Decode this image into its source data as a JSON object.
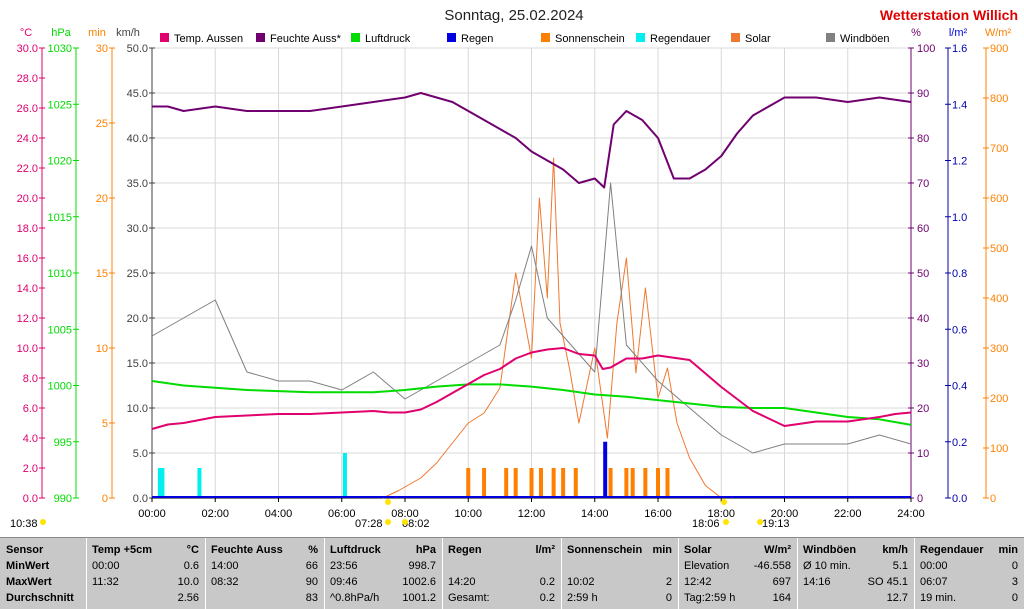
{
  "title": "Sonntag, 25.02.2024",
  "brand": "Wetterstation Willich",
  "units": {
    "left": [
      "°C",
      "hPa",
      "min",
      "km/h"
    ],
    "right": [
      "%",
      "l/m²",
      "W/m²"
    ]
  },
  "colors": {
    "temp": "#e0006e",
    "humidity": "#700070",
    "pressure": "#00dc00",
    "rain": "#0000e0",
    "sunshine": "#ff8000",
    "rainduration": "#00f0f0",
    "solar": "#f07830",
    "gust": "#808080"
  },
  "legend": [
    {
      "key": "temp",
      "label": "Temp. Aussen"
    },
    {
      "key": "humidity",
      "label": "Feuchte Auss*"
    },
    {
      "key": "pressure",
      "label": "Luftdruck"
    },
    {
      "key": "rain",
      "label": "Regen"
    },
    {
      "key": "sunshine",
      "label": "Sonnenschein"
    },
    {
      "key": "rainduration",
      "label": "Regendauer"
    },
    {
      "key": "solar",
      "label": "Solar"
    },
    {
      "key": "gust",
      "label": "Windböen"
    }
  ],
  "axes": {
    "temp": {
      "ticks": [
        "30.0",
        "28.0",
        "26.0",
        "24.0",
        "22.0",
        "20.0",
        "18.0",
        "16.0",
        "14.0",
        "12.0",
        "10.0",
        "8.0",
        "6.0",
        "4.0",
        "2.0",
        "0.0"
      ],
      "range": [
        0,
        30
      ]
    },
    "pressure": {
      "ticks": [
        "1030",
        "1025",
        "1020",
        "1015",
        "1010",
        "1005",
        "1000",
        "995",
        "990"
      ],
      "range": [
        990,
        1030
      ]
    },
    "minutes": {
      "ticks": [
        "30",
        "25",
        "20",
        "15",
        "10",
        "5",
        "0"
      ],
      "range": [
        0,
        30
      ]
    },
    "wind": {
      "ticks": [
        "50.0",
        "45.0",
        "40.0",
        "35.0",
        "30.0",
        "25.0",
        "20.0",
        "15.0",
        "10.0",
        "5.0",
        "0.0"
      ],
      "range": [
        0,
        50
      ]
    },
    "humidity": {
      "ticks": [
        "100",
        "90",
        "80",
        "70",
        "60",
        "50",
        "40",
        "30",
        "20",
        "10",
        "0"
      ],
      "range": [
        0,
        100
      ]
    },
    "rain": {
      "ticks": [
        "1.6",
        "1.4",
        "1.2",
        "1.0",
        "0.8",
        "0.6",
        "0.4",
        "0.2",
        "0.0"
      ],
      "range": [
        0,
        1.6
      ]
    },
    "solar": {
      "ticks": [
        "900",
        "800",
        "700",
        "600",
        "500",
        "400",
        "300",
        "200",
        "100",
        "0"
      ],
      "range": [
        0,
        900
      ]
    },
    "x_ticks": [
      "00:00",
      "02:00",
      "04:00",
      "06:00",
      "08:00",
      "10:00",
      "12:00",
      "14:00",
      "16:00",
      "18:00",
      "20:00",
      "22:00",
      "24:00"
    ]
  },
  "markers": {
    "left_time": "10:38",
    "sunrise": "07:28",
    "noon_mark": "08:02",
    "sunset": "18:06",
    "dusk": "19:13"
  },
  "chart_data": {
    "type": "line",
    "x_unit": "hours",
    "grid": true,
    "series": [
      {
        "name": "Temp. Aussen",
        "key": "temp",
        "axis": "temp",
        "x": [
          0,
          0.5,
          1,
          1.5,
          2,
          3,
          4,
          5,
          6,
          7,
          7.5,
          8,
          8.5,
          9,
          9.5,
          10,
          10.5,
          11,
          11.5,
          12,
          12.5,
          13,
          13.5,
          14,
          14.25,
          14.5,
          15,
          15.5,
          16,
          17,
          18,
          19,
          20,
          21,
          22,
          23,
          23.5,
          24
        ],
        "values": [
          4.6,
          4.9,
          5.0,
          5.2,
          5.4,
          5.5,
          5.6,
          5.6,
          5.7,
          5.8,
          5.7,
          5.7,
          5.9,
          6.4,
          7.0,
          7.6,
          8.2,
          8.6,
          9.3,
          9.7,
          9.9,
          10.0,
          9.6,
          9.5,
          8.6,
          8.7,
          9.3,
          9.3,
          9.5,
          9.2,
          7.4,
          5.8,
          4.8,
          5.1,
          5.1,
          5.4,
          5.6,
          5.7
        ]
      },
      {
        "name": "Feuchte Auss*",
        "key": "humidity",
        "axis": "humidity",
        "x": [
          0,
          0.5,
          1,
          2,
          3,
          4,
          5,
          6,
          7,
          8,
          8.5,
          9,
          9.5,
          10,
          10.5,
          11,
          11.5,
          12,
          12.5,
          13,
          13.5,
          14,
          14.3,
          14.6,
          15,
          15.5,
          16,
          16.5,
          17,
          17.5,
          18,
          18.5,
          19,
          19.5,
          20,
          21,
          22,
          23,
          24
        ],
        "values": [
          87,
          87,
          86,
          87,
          86,
          86,
          86,
          87,
          88,
          89,
          90,
          89,
          88,
          86,
          84,
          82,
          80,
          77,
          75,
          73,
          70,
          71,
          69,
          83,
          86,
          84,
          80,
          71,
          71,
          73,
          76,
          81,
          85,
          87,
          89,
          89,
          88,
          89,
          88
        ]
      },
      {
        "name": "Luftdruck",
        "key": "pressure",
        "axis": "pressure",
        "x": [
          0,
          1,
          2,
          3,
          4,
          5,
          6,
          7,
          8,
          9,
          10,
          11,
          12,
          13,
          14,
          15,
          16,
          17,
          18,
          19,
          20,
          21,
          22,
          23,
          24
        ],
        "values": [
          1000.4,
          1000.0,
          999.8,
          999.6,
          999.5,
          999.4,
          999.4,
          999.4,
          999.6,
          999.9,
          1000.1,
          1000.1,
          999.9,
          999.6,
          999.2,
          999.0,
          998.7,
          998.4,
          998.1,
          998.0,
          998.0,
          997.6,
          997.2,
          997.0,
          996.5
        ]
      },
      {
        "name": "Regen",
        "key": "rain",
        "axis": "rain",
        "x": [
          14.33
        ],
        "values": [
          0.2
        ]
      },
      {
        "name": "Solar",
        "key": "solar",
        "axis": "solar",
        "x": [
          7.3,
          7.8,
          8.5,
          9,
          9.5,
          10,
          10.5,
          11,
          11.5,
          12,
          12.25,
          12.5,
          12.7,
          12.9,
          13.2,
          13.5,
          14,
          14.4,
          14.7,
          15,
          15.3,
          15.6,
          16,
          16.3,
          16.6,
          17,
          17.5,
          18
        ],
        "values": [
          0,
          15,
          40,
          70,
          110,
          150,
          170,
          220,
          450,
          280,
          600,
          400,
          680,
          350,
          260,
          150,
          300,
          120,
          350,
          480,
          250,
          420,
          200,
          260,
          150,
          80,
          25,
          0
        ]
      },
      {
        "name": "Windböen",
        "key": "gust",
        "axis": "wind",
        "x": [
          0,
          1,
          2,
          3,
          4,
          5,
          6,
          7,
          8,
          9,
          10,
          11,
          11.5,
          12,
          12.5,
          13,
          14,
          14.5,
          15,
          16,
          17,
          18,
          19,
          20,
          21,
          22,
          23,
          24
        ],
        "values": [
          18,
          20,
          22,
          14,
          13,
          13,
          12,
          14,
          11,
          13,
          15,
          17,
          22,
          28,
          20,
          18,
          14,
          35,
          17,
          13,
          10,
          7,
          5,
          6,
          6,
          6,
          7,
          6
        ]
      }
    ],
    "bars": [
      {
        "name": "Regendauer",
        "key": "rainduration",
        "axis": "minutes",
        "x": [
          0.25,
          0.33,
          1.5,
          6.1
        ],
        "values": [
          2,
          2,
          2,
          3
        ]
      },
      {
        "name": "Sonnenschein",
        "key": "sunshine",
        "axis": "minutes",
        "x": [
          10,
          10.5,
          11.2,
          11.5,
          12,
          12.3,
          12.7,
          13,
          13.4,
          14.5,
          15,
          15.2,
          15.6,
          16,
          16.3
        ],
        "values": [
          2,
          2,
          2,
          2,
          2,
          2,
          2,
          2,
          2,
          2,
          2,
          2,
          2,
          2,
          2
        ]
      }
    ]
  },
  "stats": {
    "headers": [
      {
        "name": "Sensor",
        "unit": ""
      },
      {
        "name": "Temp +5cm",
        "unit": "°C"
      },
      {
        "name": "Feuchte Auss",
        "unit": "%"
      },
      {
        "name": "Luftdruck",
        "unit": "hPa"
      },
      {
        "name": "Regen",
        "unit": "l/m²"
      },
      {
        "name": "Sonnenschein",
        "unit": "min"
      },
      {
        "name": "Solar",
        "unit": "W/m²"
      },
      {
        "name": "Windböen",
        "unit": "km/h"
      },
      {
        "name": "Regendauer",
        "unit": "min"
      }
    ],
    "row_labels": [
      "MinWert",
      "MaxWert",
      "Durchschnitt"
    ],
    "cells": [
      [
        [
          "00:00",
          "0.6"
        ],
        [
          "11:32",
          "10.0"
        ],
        [
          "",
          "2.56"
        ]
      ],
      [
        [
          "14:00",
          "66"
        ],
        [
          "08:32",
          "90"
        ],
        [
          "",
          "83"
        ]
      ],
      [
        [
          "23:56",
          "998.7"
        ],
        [
          "09:46",
          "1002.6"
        ],
        [
          "^0.8hPa/h",
          "1001.2"
        ]
      ],
      [
        [
          "",
          ""
        ],
        [
          "14:20",
          "0.2"
        ],
        [
          "Gesamt:",
          "0.2"
        ]
      ],
      [
        [
          "",
          ""
        ],
        [
          "10:02",
          "2"
        ],
        [
          "2:59 h",
          "0"
        ]
      ],
      [
        [
          "Elevation",
          "-46.558"
        ],
        [
          "12:42",
          "697"
        ],
        [
          "Tag:2:59 h",
          "164"
        ]
      ],
      [
        [
          "Ø 10 min.",
          "5.1"
        ],
        [
          "14:16",
          "SO 45.1"
        ],
        [
          "",
          "12.7"
        ]
      ],
      [
        [
          "00:00",
          "0"
        ],
        [
          "06:07",
          "3"
        ],
        [
          "19 min.",
          "0"
        ]
      ]
    ]
  }
}
